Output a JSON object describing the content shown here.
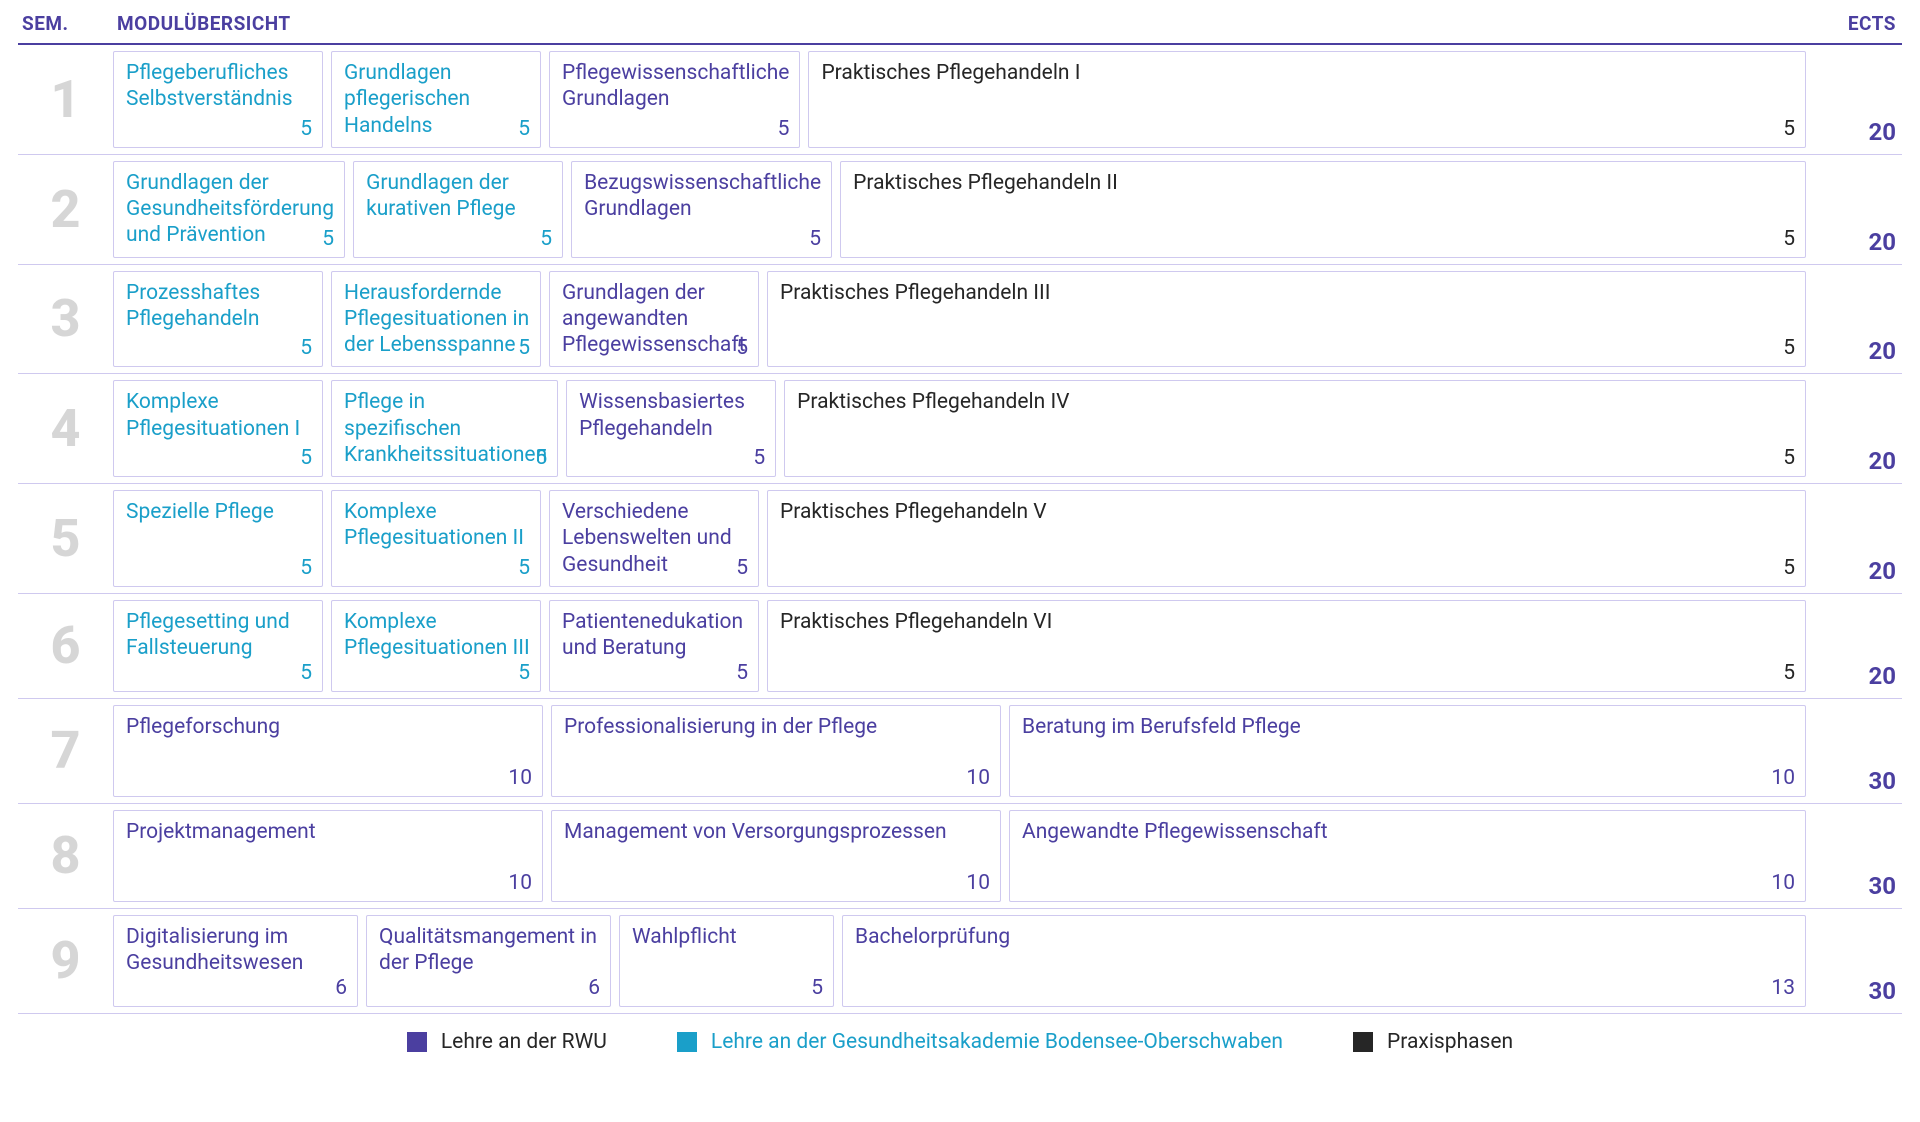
{
  "colors": {
    "violet": "#4b3fa0",
    "violet_light": "#cfc9ef",
    "cyan": "#1a9fc9",
    "black": "#262626",
    "grey_num": "#d6d6d6"
  },
  "header": {
    "sem": "SEM.",
    "title": "MODULÜBERSICHT",
    "ects": "ECTS"
  },
  "layout": {
    "widths_1_6": [
      210,
      210,
      210,
      710
    ],
    "widths_7_8": [
      430,
      450,
      460
    ],
    "widths_9": [
      245,
      245,
      215,
      635
    ]
  },
  "semesters": [
    {
      "n": "1",
      "ects": "20",
      "layout": "a",
      "modules": [
        {
          "title": "Pflegeberufliches Selbstverständnis",
          "credits": "5",
          "type": "cyan"
        },
        {
          "title": "Grundlagen pflegeri­schen Handelns",
          "credits": "5",
          "type": "cyan"
        },
        {
          "title": "Pflegewissenschaftliche Grundlagen",
          "credits": "5",
          "type": "violet"
        },
        {
          "title": "Praktisches Pflegehandeln I",
          "credits": "5",
          "type": "black"
        }
      ]
    },
    {
      "n": "2",
      "ects": "20",
      "layout": "a",
      "modules": [
        {
          "title": "Grundlagen der Gesundheitsförderung und Prävention",
          "credits": "5",
          "type": "cyan"
        },
        {
          "title": "Grundlagen der kurativen Pflege",
          "credits": "5",
          "type": "cyan"
        },
        {
          "title": "Bezugswissenschaftliche Grundlagen",
          "credits": "5",
          "type": "violet"
        },
        {
          "title": "Praktisches Pflegehandeln II",
          "credits": "5",
          "type": "black"
        }
      ]
    },
    {
      "n": "3",
      "ects": "20",
      "layout": "a",
      "modules": [
        {
          "title": "Prozesshaftes Pflegehandeln",
          "credits": "5",
          "type": "cyan"
        },
        {
          "title": "Herausfordernde Pflegesituationen in der Lebensspanne",
          "credits": "5",
          "type": "cyan"
        },
        {
          "title": "Grundlagen der angewandten Pflege­wissenschaft",
          "credits": "5",
          "type": "violet"
        },
        {
          "title": "Praktisches Pflegehandeln III",
          "credits": "5",
          "type": "black"
        }
      ]
    },
    {
      "n": "4",
      "ects": "20",
      "layout": "a",
      "modules": [
        {
          "title": "Komplexe Pflegesituationen I",
          "credits": "5",
          "type": "cyan"
        },
        {
          "title": "Pflege in spezifischen Krankheitssituationen",
          "credits": "5",
          "type": "cyan"
        },
        {
          "title": "Wissensbasiertes Pflegehandeln",
          "credits": "5",
          "type": "violet"
        },
        {
          "title": "Praktisches Pflegehandeln IV",
          "credits": "5",
          "type": "black"
        }
      ]
    },
    {
      "n": "5",
      "ects": "20",
      "layout": "a",
      "modules": [
        {
          "title": "Spezielle Pflege",
          "credits": "5",
          "type": "cyan"
        },
        {
          "title": "Komplexe Pflegesituationen II",
          "credits": "5",
          "type": "cyan"
        },
        {
          "title": "Verschiedene Lebenswelten und Gesundheit",
          "credits": "5",
          "type": "violet"
        },
        {
          "title": "Praktisches Pflegehandeln V",
          "credits": "5",
          "type": "black"
        }
      ]
    },
    {
      "n": "6",
      "ects": "20",
      "layout": "a",
      "modules": [
        {
          "title": "Pflegesetting und Fallsteuerung",
          "credits": "5",
          "type": "cyan"
        },
        {
          "title": "Komplexe Pflegesituationen III",
          "credits": "5",
          "type": "cyan"
        },
        {
          "title": "Patientenedukation und Beratung",
          "credits": "5",
          "type": "violet"
        },
        {
          "title": "Praktisches Pflegehandeln VI",
          "credits": "5",
          "type": "black"
        }
      ]
    },
    {
      "n": "7",
      "ects": "30",
      "layout": "b",
      "modules": [
        {
          "title": "Pflegeforschung",
          "credits": "10",
          "type": "violet"
        },
        {
          "title": "Professionalisierung in der Pflege",
          "credits": "10",
          "type": "violet"
        },
        {
          "title": "Beratung im Berufsfeld Pflege",
          "credits": "10",
          "type": "violet"
        }
      ]
    },
    {
      "n": "8",
      "ects": "30",
      "layout": "b",
      "modules": [
        {
          "title": "Projektmanagement",
          "credits": "10",
          "type": "violet"
        },
        {
          "title": "Management von Versorgungsprozessen",
          "credits": "10",
          "type": "violet"
        },
        {
          "title": "Angewandte Pflegewissenschaft",
          "credits": "10",
          "type": "violet"
        }
      ]
    },
    {
      "n": "9",
      "ects": "30",
      "layout": "c",
      "modules": [
        {
          "title": "Digitalisierung im Gesund­heitswesen",
          "credits": "6",
          "type": "violet"
        },
        {
          "title": "Qualitätsmangement in der Pflege",
          "credits": "6",
          "type": "violet"
        },
        {
          "title": "Wahlpflicht",
          "credits": "5",
          "type": "violet"
        },
        {
          "title": "Bachelorprüfung",
          "credits": "13",
          "type": "violet"
        }
      ]
    }
  ],
  "legend": [
    {
      "swatch": "violet",
      "label": "Lehre an der RWU",
      "text_type": "black"
    },
    {
      "swatch": "cyan",
      "label": "Lehre an der Gesundheitsakademie Bodensee-Oberschwaben",
      "text_type": "cyan"
    },
    {
      "swatch": "black",
      "label": "Praxisphasen",
      "text_type": "black"
    }
  ]
}
